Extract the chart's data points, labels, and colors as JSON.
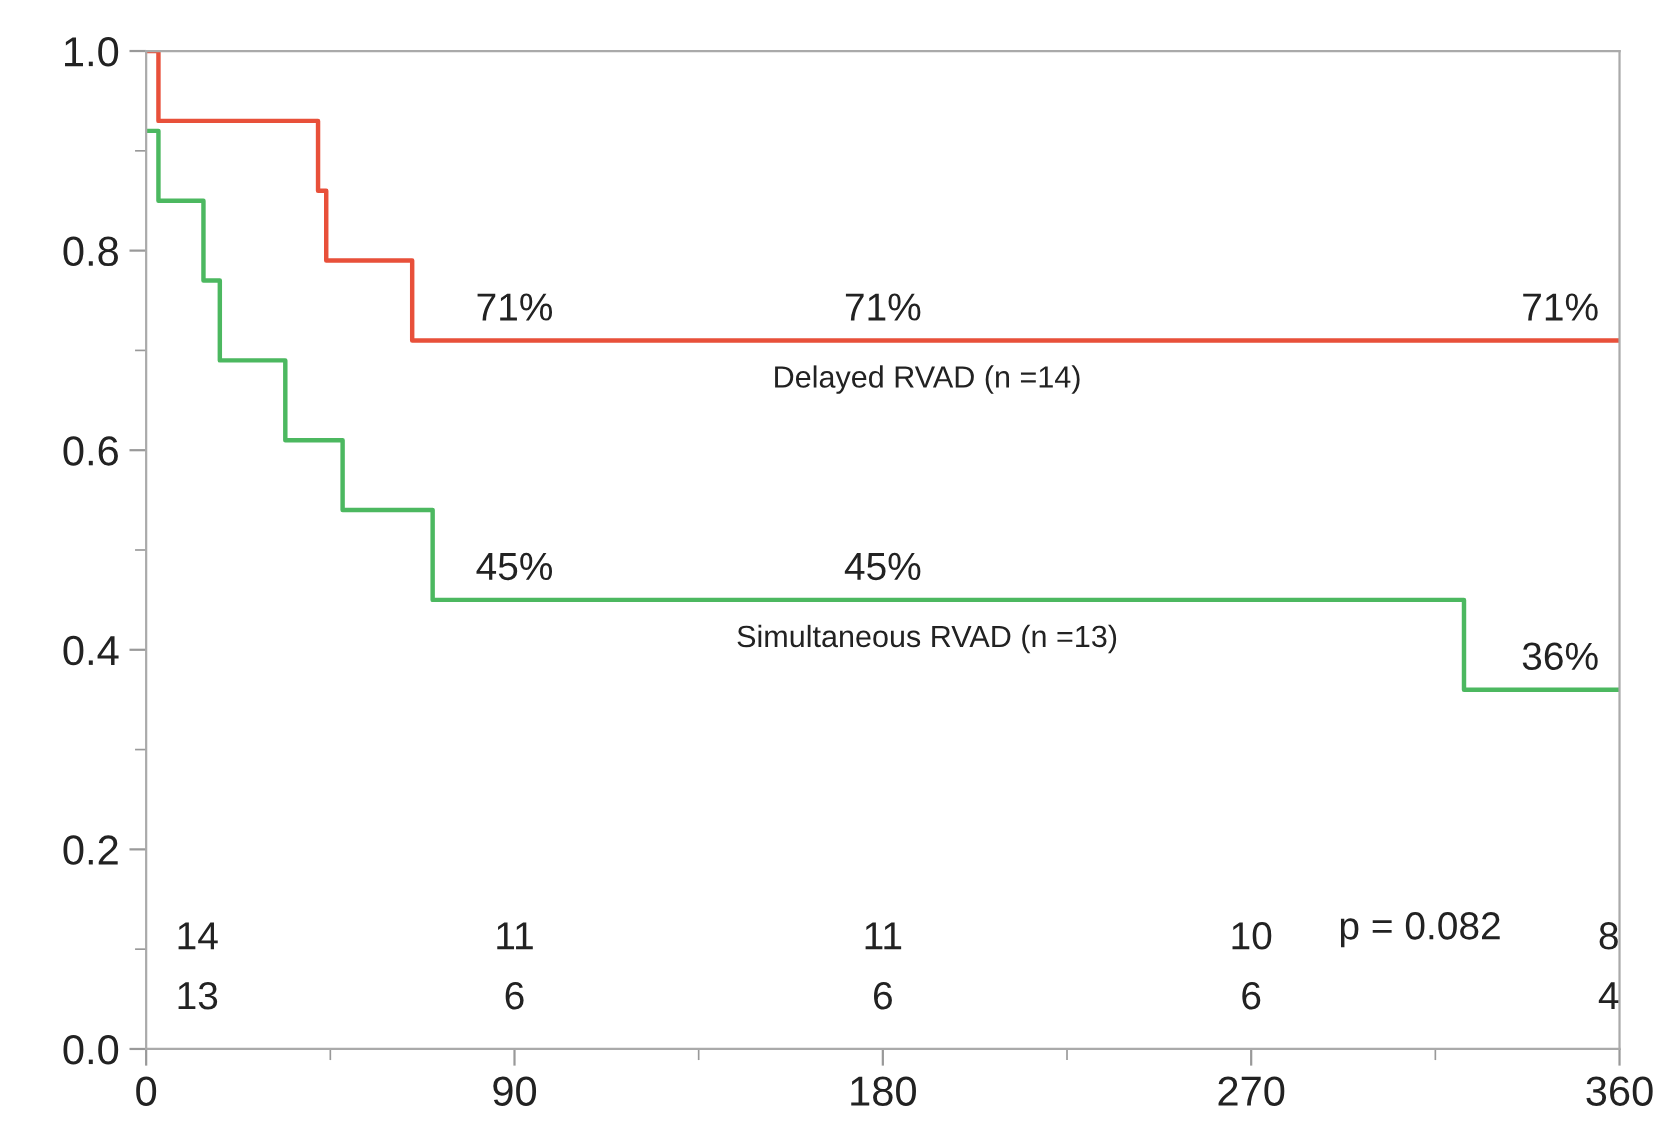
{
  "chart_data": {
    "type": "step",
    "xlim": [
      0,
      360
    ],
    "xticks": [
      0,
      90,
      180,
      270,
      360
    ],
    "ylim": [
      0,
      1.0
    ],
    "yticks": [
      {
        "value": 0,
        "label": "0.0"
      },
      {
        "value": 0.2,
        "label": "0.2"
      },
      {
        "value": 0.4,
        "label": "0.4"
      },
      {
        "value": 0.6,
        "label": "0.6"
      },
      {
        "value": 0.8,
        "label": "0.8"
      },
      {
        "value": 1.0,
        "label": "1.0"
      }
    ],
    "grid": false,
    "legend": false,
    "series": [
      {
        "name": "Delayed RVAD (n =14)",
        "color": "#e8503a",
        "x": [
          0,
          3,
          42,
          44,
          65,
          360
        ],
        "values": [
          1.0,
          0.93,
          0.86,
          0.79,
          0.71,
          0.71
        ]
      },
      {
        "name": "Simultaneous RVAD (n =13)",
        "color": "#4cb860",
        "x": [
          0,
          3,
          14,
          18,
          34,
          48,
          70,
          322,
          360
        ],
        "values": [
          0.92,
          0.85,
          0.77,
          0.69,
          0.61,
          0.54,
          0.45,
          0.36,
          0.36
        ]
      }
    ],
    "annotations": [
      {
        "text": "71%",
        "x": 90,
        "y": 0.71
      },
      {
        "text": "71%",
        "x": 180,
        "y": 0.71
      },
      {
        "text": "71%",
        "x": 355,
        "y": 0.71
      },
      {
        "text": "45%",
        "x": 90,
        "y": 0.45
      },
      {
        "text": "45%",
        "x": 180,
        "y": 0.45
      },
      {
        "text": "36%",
        "x": 355,
        "y": 0.36
      },
      "14",
      "11",
      "11",
      "10",
      "8",
      "13",
      "6",
      "6",
      "6",
      "4",
      "p = 0.082"
    ]
  }
}
